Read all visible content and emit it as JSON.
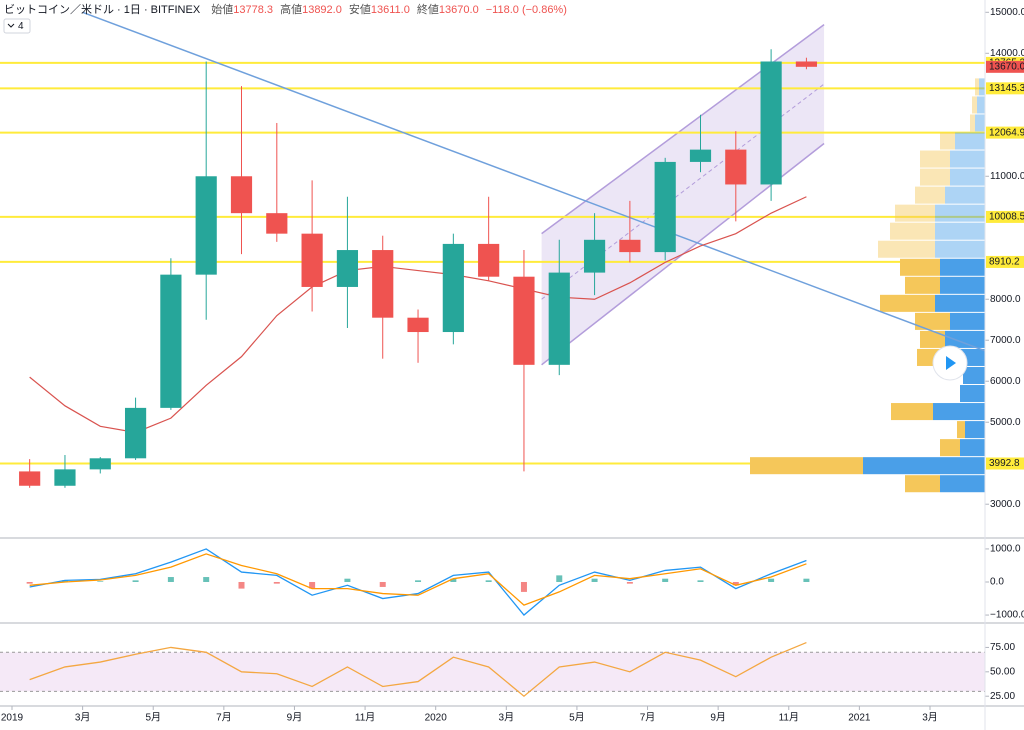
{
  "header": {
    "title": "ビットコイン／米ドル · 1日 · BITFINEX",
    "ohlc": [
      {
        "name": "始値",
        "value": "13778.3"
      },
      {
        "name": "高値",
        "value": "13892.0"
      },
      {
        "name": "安値",
        "value": "13611.0"
      },
      {
        "name": "終値",
        "value": "13670.0"
      }
    ],
    "change": "−118.0 (−0.86%)",
    "indicators": 4
  },
  "chart_data": [
    {
      "type": "candlestick",
      "x": [
        "2019-01",
        "2019-02",
        "2019-03",
        "2019-04",
        "2019-05",
        "2019-06",
        "2019-07",
        "2019-08",
        "2019-09",
        "2019-10",
        "2019-11",
        "2019-12",
        "2020-01",
        "2020-02",
        "2020-03",
        "2020-04",
        "2020-05",
        "2020-06",
        "2020-07",
        "2020-08",
        "2020-09",
        "2020-10",
        "2020-11"
      ],
      "open": [
        3800,
        3450,
        3850,
        4120,
        5350,
        8600,
        11000,
        10100,
        9600,
        8300,
        9200,
        7550,
        7200,
        9350,
        8550,
        6400,
        8650,
        9450,
        9150,
        11350,
        11650,
        10800,
        13800
      ],
      "high": [
        4100,
        4200,
        4150,
        5600,
        9000,
        13800,
        13200,
        12300,
        10900,
        10500,
        9550,
        7750,
        9600,
        10500,
        9200,
        9450,
        10100,
        10400,
        11450,
        12500,
        12100,
        14100,
        13892
      ],
      "low": [
        3400,
        3400,
        3750,
        4080,
        5300,
        7500,
        9100,
        9400,
        7700,
        7300,
        6550,
        6450,
        6900,
        8450,
        3800,
        6150,
        8100,
        8900,
        8950,
        11100,
        9900,
        10400,
        13611
      ],
      "close": [
        3450,
        3850,
        4120,
        5350,
        8600,
        11000,
        10100,
        9600,
        8300,
        9200,
        7550,
        7200,
        9350,
        8550,
        6400,
        8650,
        9450,
        9150,
        11350,
        11650,
        10800,
        13800,
        13670
      ],
      "up_color": "#26a69a",
      "down_color": "#ef5350",
      "series": [
        {
          "color": "#d9534f",
          "values": [
            6100,
            5400,
            4900,
            4750,
            5100,
            5900,
            6600,
            7600,
            8300,
            8700,
            8800,
            8700,
            8600,
            8450,
            8250,
            8050,
            8000,
            8400,
            8900,
            9300,
            9600,
            10100,
            10500
          ]
        }
      ],
      "levels": {
        "values": [
          13765.3,
          13145.3,
          12064.9,
          10008.5,
          8910.2,
          3992.8
        ],
        "color": "#ffeb3b"
      },
      "last_price": {
        "value": 13670,
        "label": "13670.0",
        "color": "#ef5350"
      },
      "trendline": {
        "x": [
          "2019-03",
          "2021-05"
        ],
        "values": [
          15000,
          6600
        ],
        "color": "#6fa0dc"
      },
      "channel": {
        "x": [
          "2020-04",
          "2020-12"
        ],
        "upper": [
          9600,
          14700
        ],
        "lower": [
          6400,
          11800
        ],
        "color": "#b39ddb"
      },
      "volume_profile": {
        "prices": [
          3500,
          3940,
          4380,
          4820,
          5260,
          5700,
          6140,
          6580,
          7020,
          7460,
          7900,
          8340,
          8780,
          9220,
          9660,
          10100,
          10540,
          10980,
          11420,
          11860,
          12300,
          12740,
          13180
        ],
        "up": [
          45,
          122,
          25,
          20,
          52,
          25,
          22,
          38,
          40,
          35,
          50,
          45,
          45,
          50,
          50,
          50,
          40,
          35,
          35,
          30,
          10,
          8,
          6
        ],
        "down": [
          35,
          113,
          20,
          8,
          42,
          0,
          0,
          30,
          25,
          35,
          55,
          35,
          40,
          57,
          45,
          40,
          30,
          30,
          30,
          15,
          5,
          5,
          4
        ],
        "up_color": "#4a9fe8",
        "down_color": "#f5c75a"
      },
      "xlim": [
        "2019-01",
        "2021-04"
      ],
      "ylim": [
        2200,
        15300
      ],
      "yticks": [
        {
          "value": 15000,
          "label": "15000.0"
        },
        {
          "value": 14000,
          "label": "14000.0"
        },
        {
          "value": 11000,
          "label": "11000.0"
        },
        {
          "value": 8000,
          "label": "8000.0"
        },
        {
          "value": 7000,
          "label": "7000.0"
        },
        {
          "value": 6000,
          "label": "6000.0"
        },
        {
          "value": 5000,
          "label": "5000.0"
        },
        {
          "value": 3000,
          "label": "3000.0"
        }
      ]
    },
    {
      "type": "line",
      "x": [
        "2019-01",
        "2019-02",
        "2019-03",
        "2019-04",
        "2019-05",
        "2019-06",
        "2019-07",
        "2019-08",
        "2019-09",
        "2019-10",
        "2019-11",
        "2019-12",
        "2020-01",
        "2020-02",
        "2020-03",
        "2020-04",
        "2020-05",
        "2020-06",
        "2020-07",
        "2020-08",
        "2020-09",
        "2020-10",
        "2020-11"
      ],
      "series": [
        {
          "color": "#2196f3",
          "values": [
            -150,
            50,
            80,
            250,
            600,
            1000,
            300,
            200,
            -400,
            -100,
            -500,
            -350,
            200,
            300,
            -1000,
            -100,
            300,
            50,
            350,
            450,
            -200,
            250,
            650
          ]
        },
        {
          "color": "#ff9800",
          "values": [
            -100,
            0,
            60,
            200,
            450,
            850,
            500,
            250,
            -200,
            -200,
            -350,
            -400,
            100,
            250,
            -700,
            -300,
            200,
            100,
            250,
            400,
            -100,
            150,
            550
          ]
        }
      ],
      "histogram": {
        "values": [
          -50,
          50,
          20,
          50,
          150,
          150,
          -200,
          -50,
          -200,
          100,
          -150,
          50,
          100,
          50,
          -300,
          200,
          100,
          -50,
          100,
          50,
          -100,
          100,
          100
        ],
        "up_color": "#26a69a",
        "down_color": "#ef5350"
      },
      "xlim": [
        "2019-01",
        "2021-04"
      ],
      "ylim": [
        -1210,
        1270
      ],
      "yticks": [
        {
          "value": 1000,
          "label": "1000.0"
        },
        {
          "value": 0,
          "label": "0.0"
        },
        {
          "value": -1000,
          "label": "−1000.0"
        }
      ]
    },
    {
      "type": "line",
      "x": [
        "2019-01",
        "2019-02",
        "2019-03",
        "2019-04",
        "2019-05",
        "2019-06",
        "2019-07",
        "2019-08",
        "2019-09",
        "2019-10",
        "2019-11",
        "2019-12",
        "2020-01",
        "2020-02",
        "2020-03",
        "2020-04",
        "2020-05",
        "2020-06",
        "2020-07",
        "2020-08",
        "2020-09",
        "2020-10",
        "2020-11"
      ],
      "series": [
        {
          "color": "#f4a742",
          "values": [
            42,
            55,
            60,
            68,
            75,
            70,
            50,
            48,
            35,
            55,
            35,
            40,
            65,
            55,
            25,
            55,
            60,
            50,
            70,
            62,
            45,
            65,
            80
          ]
        }
      ],
      "band": {
        "values": [
          30,
          70
        ],
        "color": "#9c27b0"
      },
      "xlim": [
        "2019-01",
        "2021-04"
      ],
      "ylim": [
        16,
        99
      ],
      "yticks": [
        {
          "value": 75,
          "label": "75.00"
        },
        {
          "value": 50,
          "label": "50.00"
        },
        {
          "value": 25,
          "label": "25.00"
        }
      ],
      "xticks": [
        {
          "value": "2019-01",
          "label": "2019"
        },
        {
          "value": "2019-03",
          "label": "3月"
        },
        {
          "value": "2019-05",
          "label": "5月"
        },
        {
          "value": "2019-07",
          "label": "7月"
        },
        {
          "value": "2019-09",
          "label": "9月"
        },
        {
          "value": "2019-11",
          "label": "11月"
        },
        {
          "value": "2020-01",
          "label": "2020"
        },
        {
          "value": "2020-03",
          "label": "3月"
        },
        {
          "value": "2020-05",
          "label": "5月"
        },
        {
          "value": "2020-07",
          "label": "7月"
        },
        {
          "value": "2020-09",
          "label": "9月"
        },
        {
          "value": "2020-11",
          "label": "11月"
        },
        {
          "value": "2021-01",
          "label": "2021"
        },
        {
          "value": "2021-03",
          "label": "3月"
        }
      ]
    }
  ]
}
